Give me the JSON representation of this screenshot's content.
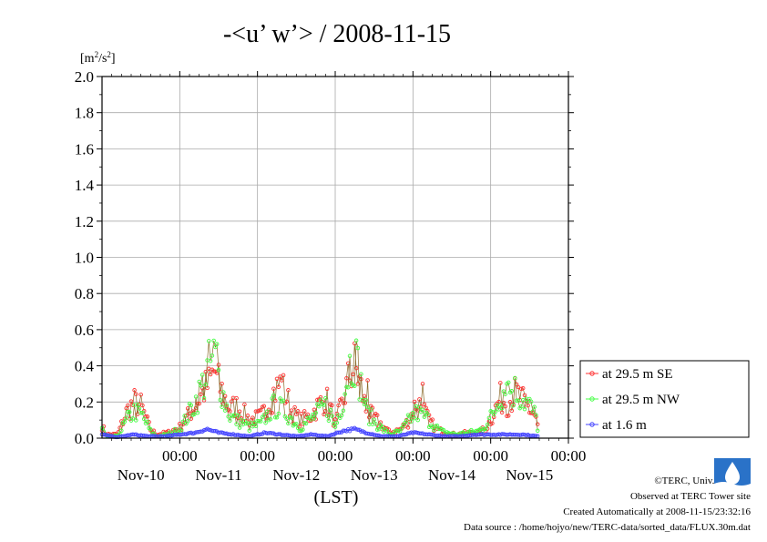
{
  "chart_data": {
    "type": "scatter",
    "title": "-<u’ w’> / 2008-11-15",
    "ylabel": "[m²/s²]",
    "xlabel": "(LST)",
    "ylim": [
      0,
      2.0
    ],
    "yticks": [
      "0.0",
      "0.2",
      "0.4",
      "0.6",
      "0.8",
      "1.0",
      "1.2",
      "1.4",
      "1.6",
      "1.8",
      "2.0"
    ],
    "xlim": [
      0,
      6
    ],
    "xticks": [
      {
        "time": "00:00",
        "date": "Nov-10",
        "pos": 0
      },
      {
        "time": "00:00",
        "date": "Nov-11",
        "pos": 1
      },
      {
        "time": "00:00",
        "date": "Nov-12",
        "pos": 2
      },
      {
        "time": "00:00",
        "date": "Nov-13",
        "pos": 3
      },
      {
        "time": "00:00",
        "date": "Nov-14",
        "pos": 4
      },
      {
        "time": "00:00",
        "date": "Nov-15",
        "pos": 5
      }
    ],
    "grid": true,
    "legend_position": "right",
    "series": [
      {
        "name": "at 29.5 m SE",
        "color": "#ff3333",
        "keys": [
          [
            0,
            0.07
          ],
          [
            0.05,
            0.02
          ],
          [
            0.2,
            0.02
          ],
          [
            0.32,
            0.15
          ],
          [
            0.42,
            0.2
          ],
          [
            0.5,
            0.18
          ],
          [
            0.62,
            0.05
          ],
          [
            0.7,
            0.02
          ],
          [
            0.85,
            0.03
          ],
          [
            1.0,
            0.06
          ],
          [
            1.1,
            0.12
          ],
          [
            1.2,
            0.18
          ],
          [
            1.3,
            0.26
          ],
          [
            1.38,
            0.3
          ],
          [
            1.45,
            0.38
          ],
          [
            1.5,
            0.3
          ],
          [
            1.58,
            0.22
          ],
          [
            1.65,
            0.16
          ],
          [
            1.72,
            0.18
          ],
          [
            1.82,
            0.14
          ],
          [
            1.9,
            0.1
          ],
          [
            2.05,
            0.12
          ],
          [
            2.15,
            0.2
          ],
          [
            2.22,
            0.26
          ],
          [
            2.3,
            0.3
          ],
          [
            2.38,
            0.22
          ],
          [
            2.45,
            0.14
          ],
          [
            2.55,
            0.1
          ],
          [
            2.68,
            0.12
          ],
          [
            2.78,
            0.18
          ],
          [
            2.88,
            0.22
          ],
          [
            2.95,
            0.15
          ],
          [
            3.0,
            0.08
          ],
          [
            3.1,
            0.2
          ],
          [
            3.18,
            0.34
          ],
          [
            3.25,
            0.4
          ],
          [
            3.32,
            0.3
          ],
          [
            3.4,
            0.15
          ],
          [
            3.48,
            0.12
          ],
          [
            3.58,
            0.08
          ],
          [
            3.7,
            0.03
          ],
          [
            3.85,
            0.05
          ],
          [
            3.95,
            0.1
          ],
          [
            4.05,
            0.2
          ],
          [
            4.12,
            0.18
          ],
          [
            4.2,
            0.1
          ],
          [
            4.3,
            0.05
          ],
          [
            4.42,
            0.03
          ],
          [
            4.55,
            0.02
          ],
          [
            4.7,
            0.03
          ],
          [
            4.85,
            0.03
          ],
          [
            4.95,
            0.06
          ],
          [
            5.05,
            0.15
          ],
          [
            5.12,
            0.22
          ],
          [
            5.22,
            0.2
          ],
          [
            5.32,
            0.25
          ],
          [
            5.42,
            0.2
          ],
          [
            5.5,
            0.16
          ],
          [
            5.58,
            0.12
          ],
          [
            5.62,
            0.03
          ]
        ],
        "spikes": [
          [
            1.48,
            0.36
          ],
          [
            2.32,
            0.32
          ],
          [
            3.42,
            0.32
          ],
          [
            4.12,
            0.3
          ]
        ]
      },
      {
        "name": "at 29.5 m NW",
        "color": "#44ff44",
        "keys": [
          [
            0,
            0.05
          ],
          [
            0.05,
            0.01
          ],
          [
            0.2,
            0.01
          ],
          [
            0.32,
            0.1
          ],
          [
            0.42,
            0.15
          ],
          [
            0.52,
            0.12
          ],
          [
            0.62,
            0.04
          ],
          [
            0.7,
            0.01
          ],
          [
            0.85,
            0.02
          ],
          [
            1.0,
            0.05
          ],
          [
            1.1,
            0.12
          ],
          [
            1.2,
            0.2
          ],
          [
            1.3,
            0.3
          ],
          [
            1.38,
            0.4
          ],
          [
            1.45,
            0.45
          ],
          [
            1.5,
            0.35
          ],
          [
            1.58,
            0.2
          ],
          [
            1.65,
            0.12
          ],
          [
            1.72,
            0.1
          ],
          [
            1.82,
            0.08
          ],
          [
            1.9,
            0.06
          ],
          [
            2.05,
            0.08
          ],
          [
            2.15,
            0.14
          ],
          [
            2.22,
            0.18
          ],
          [
            2.3,
            0.16
          ],
          [
            2.38,
            0.14
          ],
          [
            2.45,
            0.1
          ],
          [
            2.55,
            0.06
          ],
          [
            2.68,
            0.1
          ],
          [
            2.78,
            0.14
          ],
          [
            2.88,
            0.18
          ],
          [
            2.95,
            0.12
          ],
          [
            3.0,
            0.06
          ],
          [
            3.1,
            0.22
          ],
          [
            3.18,
            0.4
          ],
          [
            3.25,
            0.48
          ],
          [
            3.32,
            0.32
          ],
          [
            3.4,
            0.15
          ],
          [
            3.48,
            0.1
          ],
          [
            3.58,
            0.06
          ],
          [
            3.7,
            0.02
          ],
          [
            3.85,
            0.04
          ],
          [
            3.95,
            0.1
          ],
          [
            4.05,
            0.14
          ],
          [
            4.15,
            0.12
          ],
          [
            4.25,
            0.08
          ],
          [
            4.35,
            0.04
          ],
          [
            4.45,
            0.03
          ],
          [
            4.55,
            0.02
          ],
          [
            4.7,
            0.03
          ],
          [
            4.85,
            0.04
          ],
          [
            4.95,
            0.08
          ],
          [
            5.05,
            0.15
          ],
          [
            5.12,
            0.25
          ],
          [
            5.22,
            0.28
          ],
          [
            5.32,
            0.26
          ],
          [
            5.42,
            0.22
          ],
          [
            5.5,
            0.18
          ],
          [
            5.58,
            0.12
          ],
          [
            5.62,
            0.02
          ]
        ],
        "spikes": [
          [
            1.47,
            0.52
          ],
          [
            3.27,
            0.54
          ],
          [
            5.2,
            0.3
          ]
        ]
      },
      {
        "name": "at 1.6 m",
        "color": "#4444ff",
        "keys": [
          [
            0,
            0.02
          ],
          [
            0.2,
            0.005
          ],
          [
            0.4,
            0.02
          ],
          [
            0.6,
            0.01
          ],
          [
            0.8,
            0.01
          ],
          [
            1.0,
            0.02
          ],
          [
            1.2,
            0.03
          ],
          [
            1.35,
            0.05
          ],
          [
            1.5,
            0.03
          ],
          [
            1.7,
            0.02
          ],
          [
            1.9,
            0.01
          ],
          [
            2.1,
            0.03
          ],
          [
            2.3,
            0.02
          ],
          [
            2.5,
            0.01
          ],
          [
            2.7,
            0.02
          ],
          [
            2.9,
            0.01
          ],
          [
            3.1,
            0.04
          ],
          [
            3.25,
            0.05
          ],
          [
            3.4,
            0.03
          ],
          [
            3.6,
            0.01
          ],
          [
            3.8,
            0.01
          ],
          [
            4.0,
            0.03
          ],
          [
            4.2,
            0.02
          ],
          [
            4.4,
            0.01
          ],
          [
            4.6,
            0.01
          ],
          [
            4.8,
            0.02
          ],
          [
            5.0,
            0.02
          ],
          [
            5.2,
            0.02
          ],
          [
            5.4,
            0.02
          ],
          [
            5.62,
            0.01
          ]
        ],
        "spikes": []
      }
    ]
  },
  "credits": {
    "copyright": "©TERC, Univ. Tsukuba",
    "observed": "Observed at TERC Tower site",
    "created": "Created Automatically at 2008-11-15/23:32:16",
    "source": "Data source : /home/hojyo/new/TERC-data/sorted_data/FLUX.30m.dat"
  }
}
